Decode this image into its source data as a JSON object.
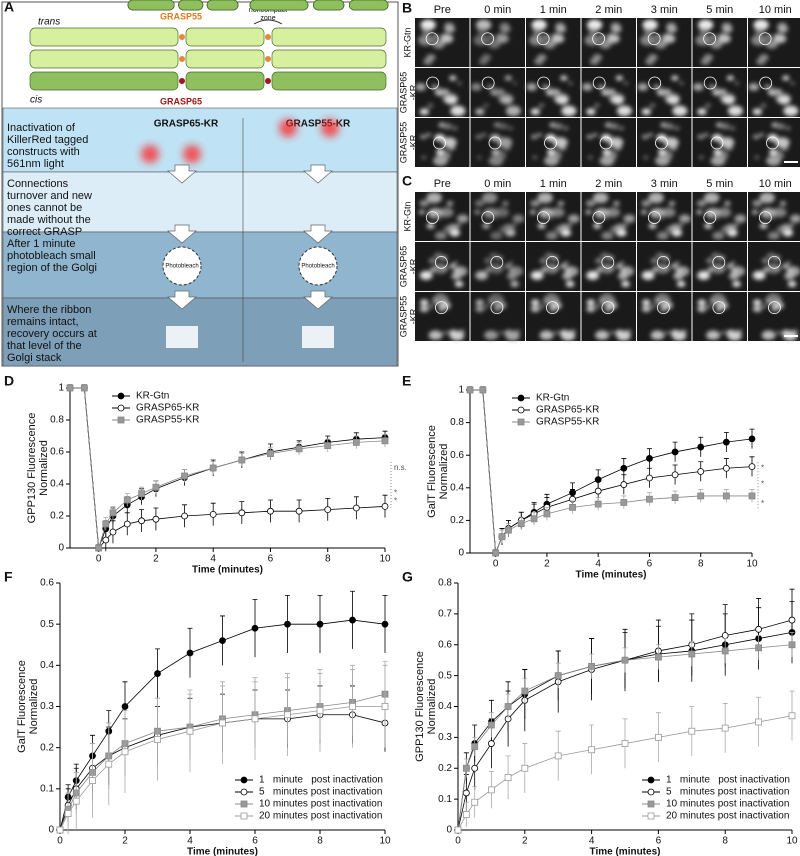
{
  "panel_labels": [
    "A",
    "B",
    "C",
    "D",
    "E",
    "F",
    "G"
  ],
  "diagram": {
    "trans": "trans",
    "cis": "cis",
    "grasp55": "GRASP55",
    "grasp65": "GRASP65",
    "noncompact": [
      "noncompact",
      "zone"
    ],
    "constructs": [
      "GRASP65-KR",
      "GRASP55-KR"
    ],
    "steps": [
      [
        "Inactivation of",
        "KillerRed tagged",
        "constructs with",
        "561nm light"
      ],
      [
        "Connections",
        "turnover and new",
        "ones cannot be",
        "made without the",
        "correct GRASP"
      ],
      [
        "After 1 minute",
        "photobleach small",
        "region of the Golgi"
      ],
      [
        "Where the ribbon",
        "remains intact,",
        "recovery occurs at",
        "that level of the",
        "Golgi stack"
      ]
    ],
    "photobleach": [
      "Photobleach",
      "Photobleach"
    ]
  },
  "images": [
    {
      "columns": [
        "Pre",
        "0 min",
        "1 min",
        "2 min",
        "3 min",
        "5 min",
        "10 min"
      ],
      "rows": [
        [
          "KR-Gtn"
        ],
        [
          "GRASP65",
          "-KR"
        ],
        [
          "GRASP55",
          "-KR"
        ]
      ]
    },
    {
      "columns": [
        "Pre",
        "0 min",
        "1 min",
        "2 min",
        "3 min",
        "5 min",
        "10 min"
      ],
      "rows": [
        [
          "KR-Gtn"
        ],
        [
          "GRASP65",
          "-KR"
        ],
        [
          "GRASP55",
          "-KR"
        ]
      ]
    }
  ],
  "chart_data": [
    {
      "type": "line",
      "ylabel": [
        "GPP130 Fluorescence",
        "Normalized"
      ],
      "xlabel": "Time (minutes)",
      "x": [
        -1,
        -0.5,
        0,
        0.25,
        0.5,
        1,
        1.5,
        2,
        3,
        4,
        5,
        6,
        7,
        8,
        9,
        10
      ],
      "xlim": [
        -1,
        10
      ],
      "ylim": [
        0,
        1
      ],
      "xticks": [
        0,
        2,
        4,
        6,
        8,
        10
      ],
      "yticks": [
        0,
        0.2,
        0.4,
        0.6,
        0.8,
        1
      ],
      "legend": "upper left",
      "series": [
        {
          "name": "KR-Gtn",
          "color": "#000000",
          "fill": "#000000",
          "marker": "circle",
          "values": [
            1,
            1,
            0,
            0.12,
            0.2,
            0.27,
            0.32,
            0.37,
            0.44,
            0.5,
            0.55,
            0.6,
            0.63,
            0.66,
            0.68,
            0.69
          ],
          "errors": [
            0.02,
            0.02,
            0.02,
            0.05,
            0.05,
            0.05,
            0.05,
            0.05,
            0.05,
            0.05,
            0.05,
            0.05,
            0.04,
            0.04,
            0.04,
            0.04
          ]
        },
        {
          "name": "GRASP65-KR",
          "color": "#000000",
          "fill": "#ffffff",
          "marker": "circle",
          "values": [
            1,
            1,
            0,
            0.05,
            0.1,
            0.15,
            0.17,
            0.18,
            0.2,
            0.21,
            0.22,
            0.23,
            0.23,
            0.24,
            0.25,
            0.26
          ],
          "errors": [
            0.02,
            0.02,
            0.02,
            0.07,
            0.07,
            0.07,
            0.07,
            0.07,
            0.07,
            0.07,
            0.07,
            0.07,
            0.07,
            0.07,
            0.07,
            0.07
          ]
        },
        {
          "name": "GRASP55-KR",
          "color": "#888888",
          "fill": "#999999",
          "marker": "square",
          "values": [
            1,
            1,
            0,
            0.15,
            0.22,
            0.3,
            0.34,
            0.38,
            0.45,
            0.5,
            0.55,
            0.59,
            0.62,
            0.64,
            0.66,
            0.67
          ],
          "errors": [
            0.02,
            0.02,
            0.02,
            0.04,
            0.04,
            0.04,
            0.04,
            0.04,
            0.04,
            0.04,
            0.04,
            0.04,
            0.04,
            0.04,
            0.04,
            0.04
          ]
        }
      ],
      "annotations": [
        "n.s.",
        "*",
        "*"
      ]
    },
    {
      "type": "line",
      "ylabel": [
        "GalT Fluorescence",
        "Normalized"
      ],
      "xlabel": "Time (minutes)",
      "x": [
        -1,
        -0.5,
        0,
        0.25,
        0.5,
        1,
        1.5,
        2,
        3,
        4,
        5,
        6,
        7,
        8,
        9,
        10
      ],
      "xlim": [
        -1,
        10
      ],
      "ylim": [
        0,
        1
      ],
      "xticks": [
        0,
        2,
        4,
        6,
        8,
        10
      ],
      "yticks": [
        0,
        0.2,
        0.4,
        0.6,
        0.8,
        1
      ],
      "legend": "upper left",
      "series": [
        {
          "name": "KR-Gtn",
          "color": "#000000",
          "fill": "#000000",
          "marker": "circle",
          "values": [
            1,
            1,
            0,
            0.1,
            0.15,
            0.2,
            0.25,
            0.3,
            0.37,
            0.45,
            0.52,
            0.58,
            0.62,
            0.65,
            0.68,
            0.7
          ],
          "errors": [
            0.02,
            0.02,
            0.02,
            0.05,
            0.05,
            0.05,
            0.06,
            0.06,
            0.06,
            0.06,
            0.06,
            0.06,
            0.06,
            0.06,
            0.06,
            0.06
          ]
        },
        {
          "name": "GRASP65-KR",
          "color": "#000000",
          "fill": "#ffffff",
          "marker": "circle",
          "values": [
            1,
            1,
            0,
            0.1,
            0.15,
            0.2,
            0.24,
            0.28,
            0.33,
            0.38,
            0.42,
            0.46,
            0.48,
            0.5,
            0.52,
            0.53
          ],
          "errors": [
            0.02,
            0.02,
            0.02,
            0.05,
            0.05,
            0.05,
            0.06,
            0.06,
            0.06,
            0.06,
            0.06,
            0.06,
            0.06,
            0.06,
            0.06,
            0.06
          ]
        },
        {
          "name": "GRASP55-KR",
          "color": "#888888",
          "fill": "#999999",
          "marker": "square",
          "values": [
            1,
            1,
            0,
            0.1,
            0.14,
            0.18,
            0.21,
            0.24,
            0.28,
            0.3,
            0.31,
            0.33,
            0.34,
            0.35,
            0.35,
            0.35
          ],
          "errors": [
            0.02,
            0.02,
            0.02,
            0.04,
            0.04,
            0.04,
            0.04,
            0.04,
            0.04,
            0.04,
            0.04,
            0.04,
            0.04,
            0.04,
            0.04,
            0.04
          ]
        }
      ],
      "annotations": [
        "*",
        "*",
        "*"
      ]
    },
    {
      "type": "line",
      "ylabel": [
        "GalT Fluorescence",
        "Normalized"
      ],
      "xlabel": "Time (minutes)",
      "x": [
        0,
        0.25,
        0.5,
        1,
        1.5,
        2,
        3,
        4,
        5,
        6,
        7,
        8,
        9,
        10
      ],
      "xlim": [
        0,
        10
      ],
      "ylim": [
        0,
        0.6
      ],
      "xticks": [
        0,
        2,
        4,
        6,
        8,
        10
      ],
      "yticks": [
        0,
        0.1,
        0.2,
        0.3,
        0.4,
        0.5,
        0.6
      ],
      "legend": "lower right",
      "series": [
        {
          "name": "1   minute   post inactivation",
          "color": "#000000",
          "fill": "#000000",
          "marker": "circle",
          "values": [
            0,
            0.08,
            0.12,
            0.18,
            0.24,
            0.3,
            0.38,
            0.43,
            0.46,
            0.49,
            0.5,
            0.5,
            0.51,
            0.5
          ],
          "errors": [
            0,
            0.03,
            0.04,
            0.05,
            0.05,
            0.06,
            0.06,
            0.06,
            0.06,
            0.07,
            0.07,
            0.07,
            0.07,
            0.07
          ]
        },
        {
          "name": "5   minutes post inactivation",
          "color": "#000000",
          "fill": "#ffffff",
          "marker": "circle",
          "values": [
            0,
            0.06,
            0.1,
            0.15,
            0.18,
            0.2,
            0.23,
            0.25,
            0.26,
            0.27,
            0.27,
            0.28,
            0.28,
            0.26
          ],
          "errors": [
            0,
            0.04,
            0.05,
            0.06,
            0.07,
            0.07,
            0.07,
            0.07,
            0.07,
            0.07,
            0.07,
            0.07,
            0.07,
            0.07
          ]
        },
        {
          "name": "10 minutes post inactivation",
          "color": "#888888",
          "fill": "#999999",
          "marker": "square",
          "values": [
            0,
            0.05,
            0.09,
            0.14,
            0.18,
            0.21,
            0.24,
            0.25,
            0.27,
            0.28,
            0.29,
            0.3,
            0.31,
            0.33
          ],
          "errors": [
            0,
            0.04,
            0.05,
            0.07,
            0.08,
            0.08,
            0.08,
            0.08,
            0.08,
            0.08,
            0.08,
            0.08,
            0.08,
            0.08
          ]
        },
        {
          "name": "20 minutes post inactivation",
          "color": "#999999",
          "fill": "#ffffff",
          "marker": "square",
          "values": [
            0,
            0.04,
            0.07,
            0.12,
            0.16,
            0.19,
            0.22,
            0.24,
            0.26,
            0.27,
            0.28,
            0.29,
            0.3,
            0.3
          ],
          "errors": [
            0,
            0.05,
            0.07,
            0.09,
            0.1,
            0.1,
            0.1,
            0.1,
            0.1,
            0.1,
            0.1,
            0.1,
            0.1,
            0.1
          ]
        }
      ]
    },
    {
      "type": "line",
      "ylabel": [
        "GPP130 Fluorescence",
        "Normalized"
      ],
      "xlabel": "Time (minutes)",
      "x": [
        0,
        0.25,
        0.5,
        1,
        1.5,
        2,
        3,
        4,
        5,
        6,
        7,
        8,
        9,
        10
      ],
      "xlim": [
        0,
        10
      ],
      "ylim": [
        0,
        0.8
      ],
      "xticks": [
        0,
        2,
        4,
        6,
        8,
        10
      ],
      "yticks": [
        0,
        0.1,
        0.2,
        0.3,
        0.4,
        0.5,
        0.6,
        0.7,
        0.8
      ],
      "legend": "lower right",
      "series": [
        {
          "name": "1   minute   post inactivation",
          "color": "#000000",
          "fill": "#000000",
          "marker": "circle",
          "values": [
            0,
            0.2,
            0.28,
            0.35,
            0.4,
            0.44,
            0.5,
            0.53,
            0.55,
            0.57,
            0.58,
            0.6,
            0.62,
            0.64
          ],
          "errors": [
            0,
            0.05,
            0.06,
            0.07,
            0.08,
            0.08,
            0.08,
            0.09,
            0.09,
            0.09,
            0.1,
            0.1,
            0.1,
            0.1
          ]
        },
        {
          "name": "5   minutes post inactivation",
          "color": "#000000",
          "fill": "#ffffff",
          "marker": "circle",
          "values": [
            0,
            0.12,
            0.2,
            0.28,
            0.36,
            0.42,
            0.48,
            0.52,
            0.55,
            0.58,
            0.6,
            0.63,
            0.65,
            0.68
          ],
          "errors": [
            0,
            0.06,
            0.07,
            0.08,
            0.09,
            0.1,
            0.1,
            0.1,
            0.1,
            0.1,
            0.1,
            0.1,
            0.1,
            0.1
          ]
        },
        {
          "name": "10 minutes post inactivation",
          "color": "#888888",
          "fill": "#999999",
          "marker": "square",
          "values": [
            0,
            0.2,
            0.27,
            0.34,
            0.4,
            0.45,
            0.5,
            0.53,
            0.55,
            0.56,
            0.57,
            0.58,
            0.59,
            0.6
          ],
          "errors": [
            0,
            0.03,
            0.03,
            0.04,
            0.04,
            0.04,
            0.04,
            0.04,
            0.04,
            0.04,
            0.04,
            0.04,
            0.04,
            0.04
          ]
        },
        {
          "name": "20 minutes post inactivation",
          "color": "#999999",
          "fill": "#ffffff",
          "marker": "square",
          "values": [
            0,
            0.05,
            0.09,
            0.13,
            0.17,
            0.2,
            0.24,
            0.26,
            0.28,
            0.3,
            0.32,
            0.33,
            0.35,
            0.37
          ],
          "errors": [
            0,
            0.04,
            0.05,
            0.06,
            0.07,
            0.08,
            0.08,
            0.08,
            0.08,
            0.08,
            0.08,
            0.08,
            0.08,
            0.08
          ]
        }
      ]
    }
  ]
}
